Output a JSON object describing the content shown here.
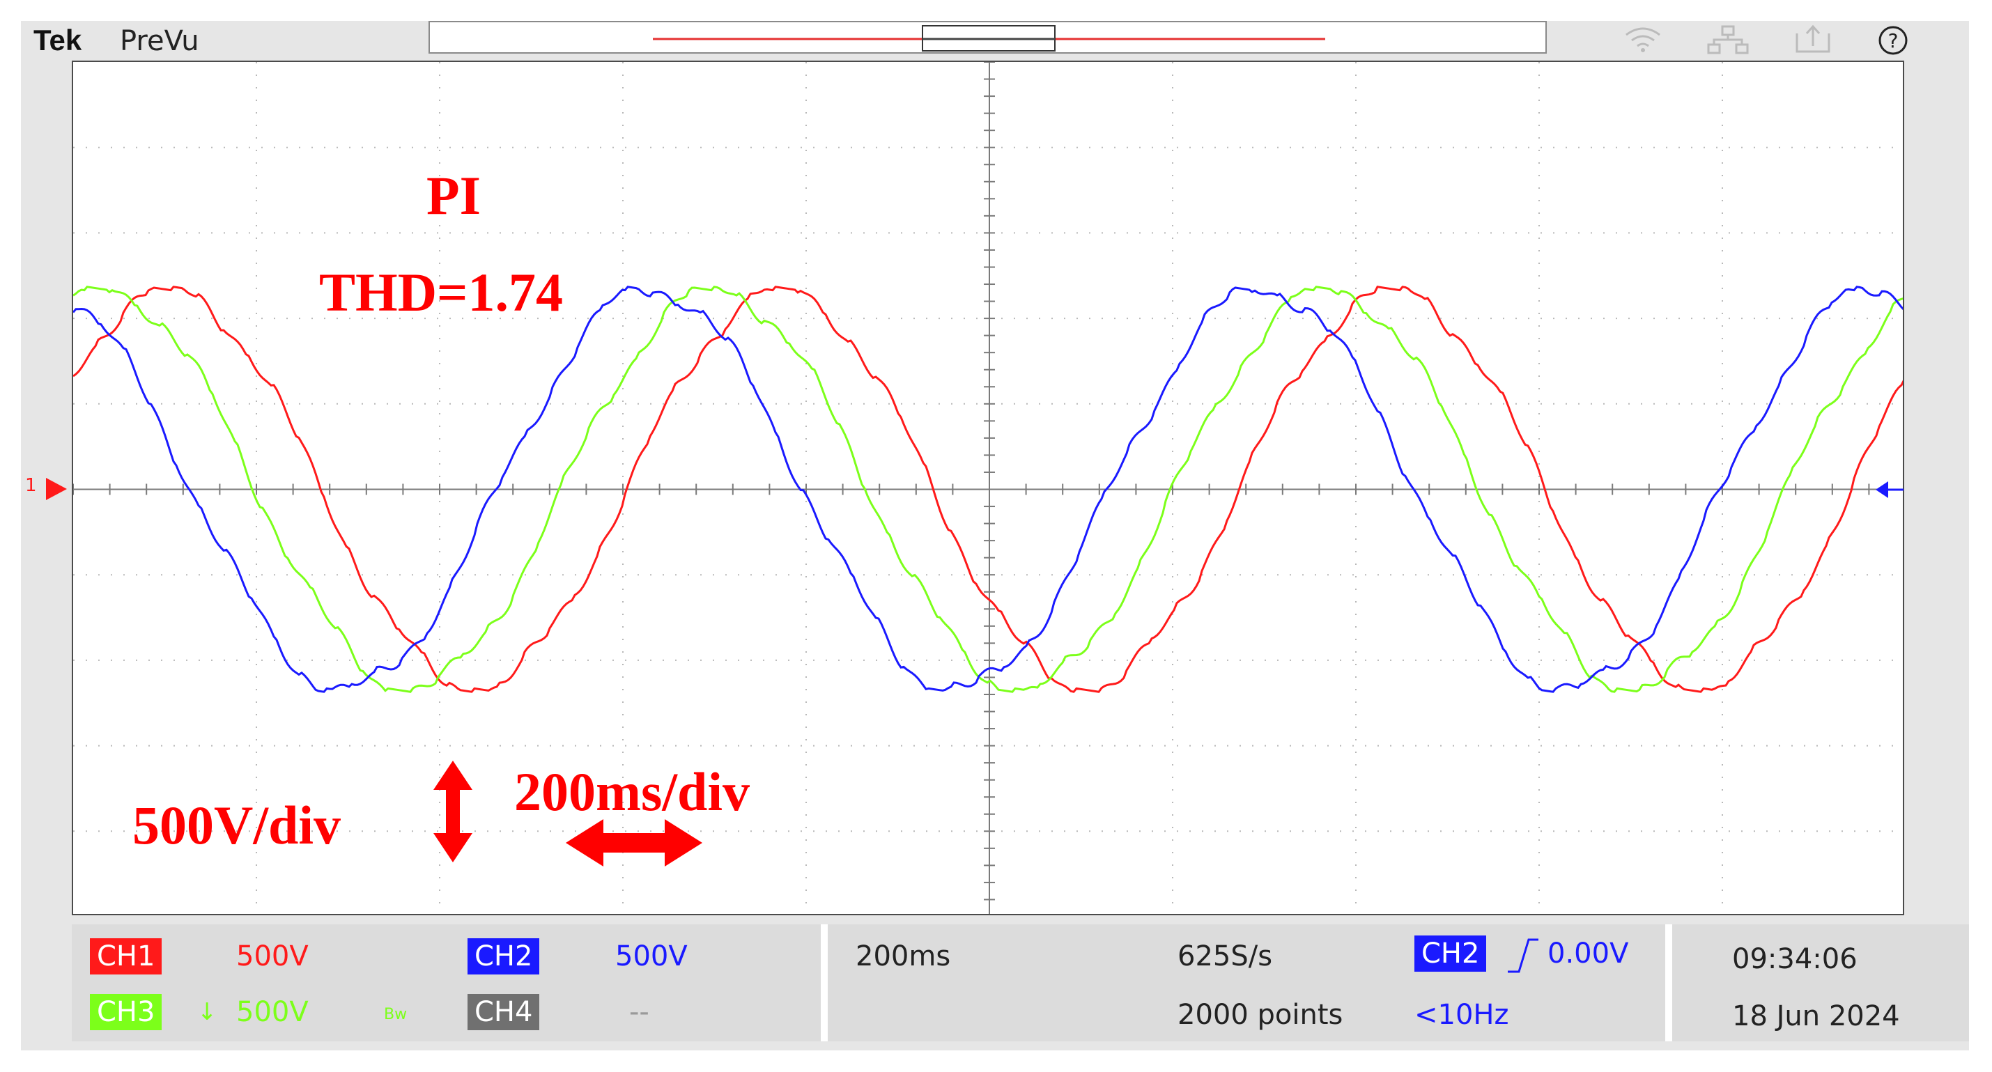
{
  "topbar": {
    "brand": "Tek",
    "mode": "PreVu",
    "icons": [
      "wifi-icon",
      "network-icon",
      "export-icon",
      "help-icon"
    ]
  },
  "annotations": {
    "controller": "PI",
    "thd": "THD=1.74",
    "vertical_scale": "500V/div",
    "horizontal_scale": "200ms/div"
  },
  "channel_marker": "1",
  "channels": [
    {
      "id": "CH1",
      "scale": "500V",
      "color": "#ff1a1a"
    },
    {
      "id": "CH2",
      "scale": "500V",
      "color": "#1a1aff"
    },
    {
      "id": "CH3",
      "scale": "500V",
      "color": "#7cff1a",
      "extra_symbol": "↓",
      "bw_symbol": "Bw"
    },
    {
      "id": "CH4",
      "scale": "--",
      "color": "#707070"
    }
  ],
  "acquisition": {
    "timebase": "200ms",
    "sample_rate": "625S/s",
    "record_length": "2000 points"
  },
  "trigger": {
    "source": "CH2",
    "slope_icon": "rising-edge-icon",
    "level": "0.00V",
    "frequency": "<10Hz"
  },
  "clock": {
    "time": "09:34:06",
    "date": "18 Jun 2024"
  },
  "colors": {
    "ch1": "#ff1a1a",
    "ch2": "#1a1aff",
    "ch3": "#7cff1a",
    "ch4": "#707070",
    "annotation": "#ff0000"
  }
}
